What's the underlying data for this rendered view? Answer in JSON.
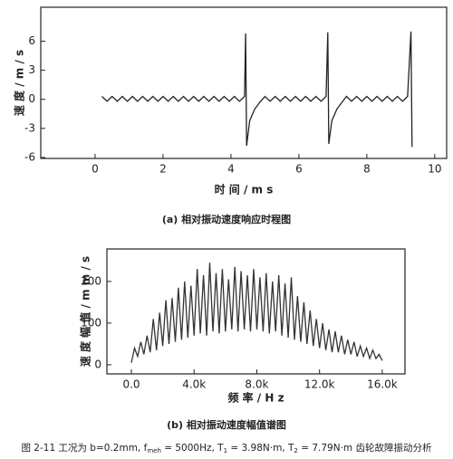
{
  "chart_data": [
    {
      "type": "line",
      "caption": "(a) 相对振动速度响应时程图",
      "xlabel": "时 间 / m s",
      "ylabel": "速 度 / m / s",
      "xlim": [
        -1.6,
        10.35
      ],
      "xticks": [
        0,
        2,
        4,
        6,
        8,
        10
      ],
      "ylim": [
        -6.1,
        9.5
      ],
      "yticks": [
        -6,
        -3,
        0,
        3,
        6
      ],
      "series": [
        {
          "color": "#222222",
          "x": [
            0.2,
            0.35,
            0.5,
            0.65,
            0.8,
            0.95,
            1.1,
            1.25,
            1.4,
            1.55,
            1.7,
            1.85,
            2.0,
            2.15,
            2.3,
            2.45,
            2.6,
            2.75,
            2.9,
            3.05,
            3.2,
            3.35,
            3.5,
            3.65,
            3.8,
            3.95,
            4.1,
            4.25,
            4.4,
            4.43,
            4.46,
            4.55,
            4.7,
            4.85,
            5.0,
            5.15,
            5.3,
            5.45,
            5.6,
            5.75,
            5.9,
            6.05,
            6.2,
            6.35,
            6.5,
            6.65,
            6.8,
            6.85,
            6.88,
            6.97,
            7.12,
            7.27,
            7.4,
            7.55,
            7.7,
            7.85,
            8.0,
            8.15,
            8.3,
            8.45,
            8.6,
            8.75,
            8.9,
            9.05,
            9.2,
            9.3,
            9.33
          ],
          "values": [
            0.3,
            -0.2,
            0.3,
            -0.2,
            0.3,
            -0.2,
            0.3,
            -0.2,
            0.3,
            -0.2,
            0.3,
            -0.2,
            0.3,
            -0.2,
            0.3,
            -0.2,
            0.3,
            -0.2,
            0.3,
            -0.2,
            0.3,
            -0.2,
            0.3,
            -0.2,
            0.3,
            -0.2,
            0.3,
            -0.2,
            0.3,
            6.8,
            -4.8,
            -2.2,
            -1.0,
            -0.3,
            0.3,
            -0.2,
            0.3,
            -0.2,
            0.3,
            -0.2,
            0.3,
            -0.2,
            0.3,
            -0.2,
            0.3,
            -0.2,
            0.3,
            6.9,
            -4.6,
            -2.2,
            -1.0,
            -0.3,
            0.3,
            -0.2,
            0.3,
            -0.2,
            0.3,
            -0.2,
            0.3,
            -0.2,
            0.3,
            -0.2,
            0.3,
            -0.2,
            0.3,
            7.0,
            -4.9
          ]
        }
      ]
    },
    {
      "type": "line",
      "caption": "(b) 相对振动速度幅值谱图",
      "xlabel": "频 率 / H z",
      "ylabel": "速 度 幅 值 / m m / s",
      "xlim": [
        -1560,
        17450
      ],
      "xticks": [
        {
          "value": 0,
          "label": "0.0"
        },
        {
          "value": 4000,
          "label": "4.0k"
        },
        {
          "value": 8000,
          "label": "8.0k"
        },
        {
          "value": 12000,
          "label": "12.0k"
        },
        {
          "value": 16000,
          "label": "16.0k"
        }
      ],
      "ylim": [
        -22,
        278
      ],
      "yticks": [
        0,
        100,
        200
      ],
      "series": [
        {
          "color": "#333333",
          "x": [
            0,
            200,
            400,
            600,
            800,
            1000,
            1200,
            1400,
            1600,
            1800,
            2000,
            2200,
            2400,
            2600,
            2800,
            3000,
            3200,
            3400,
            3600,
            3800,
            4000,
            4200,
            4400,
            4600,
            4800,
            5000,
            5200,
            5400,
            5600,
            5800,
            6000,
            6200,
            6400,
            6600,
            6800,
            7000,
            7200,
            7400,
            7600,
            7800,
            8000,
            8200,
            8400,
            8600,
            8800,
            9000,
            9200,
            9400,
            9600,
            9800,
            10000,
            10200,
            10400,
            10600,
            10800,
            11000,
            11200,
            11400,
            11600,
            11800,
            12000,
            12200,
            12400,
            12600,
            12800,
            13000,
            13200,
            13400,
            13600,
            13800,
            14000,
            14200,
            14400,
            14600,
            14800,
            15000,
            15200,
            15400,
            15600,
            15800,
            16000
          ],
          "values": [
            5,
            40,
            20,
            55,
            25,
            70,
            30,
            110,
            35,
            125,
            45,
            155,
            50,
            160,
            55,
            185,
            60,
            200,
            65,
            190,
            70,
            230,
            75,
            215,
            70,
            245,
            80,
            220,
            75,
            230,
            80,
            205,
            85,
            235,
            80,
            225,
            85,
            215,
            80,
            230,
            85,
            210,
            80,
            220,
            75,
            200,
            80,
            215,
            70,
            195,
            65,
            210,
            60,
            165,
            55,
            150,
            50,
            130,
            45,
            110,
            40,
            100,
            35,
            85,
            30,
            80,
            30,
            70,
            25,
            60,
            25,
            55,
            20,
            45,
            20,
            40,
            15,
            35,
            15,
            25,
            10
          ]
        }
      ]
    }
  ],
  "figure_caption": [
    "图 2-11 工况为 b=0.2mm, f",
    "meh",
    " = 5000Hz, T",
    "1",
    " = 3.98N·m, T",
    "2",
    " = 7.79N·m 齿轮故障振动分析"
  ]
}
